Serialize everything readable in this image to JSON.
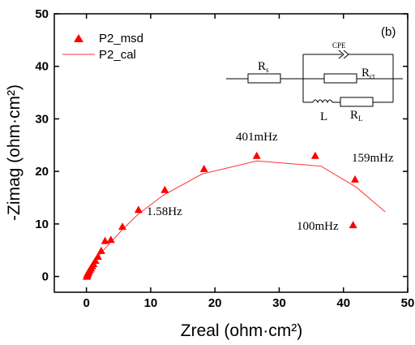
{
  "chart_data": {
    "type": "scatter",
    "panel_label": "(b)",
    "xlabel": "Zreal (ohm·cm²)",
    "ylabel": "-Zimag (ohm·cm²)",
    "xlim": [
      -5,
      50
    ],
    "ylim": [
      -3,
      50
    ],
    "x_ticks": [
      0,
      10,
      20,
      30,
      40,
      50
    ],
    "y_ticks": [
      0,
      10,
      20,
      30,
      40,
      50
    ],
    "legend_position": "top-left",
    "series": [
      {
        "name": "P2_msd",
        "style": "red-triangle-markers",
        "color": "#ff0000",
        "x": [
          0.05,
          0.1,
          0.15,
          0.2,
          0.3,
          0.4,
          0.55,
          0.7,
          0.9,
          1.1,
          1.4,
          1.8,
          2.3,
          2.9,
          3.8,
          5.6,
          8.1,
          12.2,
          18.3,
          26.5,
          35.6,
          41.8,
          41.5
        ],
        "y": [
          0.0,
          0.2,
          0.4,
          0.6,
          0.8,
          1.0,
          1.3,
          1.6,
          2.0,
          2.4,
          3.0,
          3.8,
          4.9,
          6.8,
          7.0,
          9.5,
          12.7,
          16.5,
          20.5,
          23.0,
          23.0,
          18.5,
          9.8
        ]
      },
      {
        "name": "P2_cal",
        "style": "red-line",
        "color": "#ff3333",
        "x": [
          0.0,
          0.3,
          0.8,
          1.5,
          2.5,
          4.0,
          5.5,
          8.0,
          12.0,
          18.0,
          26.5,
          36.5,
          42.0,
          46.5
        ],
        "y": [
          0.0,
          0.9,
          2.0,
          3.2,
          4.8,
          6.8,
          8.8,
          11.8,
          15.5,
          19.5,
          22.0,
          21.0,
          17.0,
          12.3
        ]
      }
    ],
    "annotations": [
      "1.58Hz",
      "401mHz",
      "159mHz",
      "100mHz"
    ],
    "circuit": {
      "cpe_label": "CPE",
      "rs_label": "R",
      "rs_sub": "s",
      "rct_label": "R",
      "rct_sub": "ct",
      "l_label": "L",
      "rl_label": "R",
      "rl_sub": "L"
    }
  }
}
